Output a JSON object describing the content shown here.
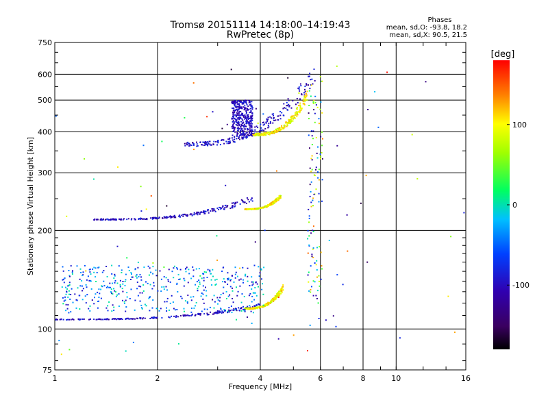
{
  "chart_data": {
    "type": "scatter",
    "title": "Tromsø 20151114 14:18:00–14:19:43",
    "subtitle": "RwPretec (8p)",
    "xlabel": "Frequency [MHz]",
    "ylabel": "Stationary phase Virtual Height [km]",
    "x_scale": "log",
    "y_scale": "log",
    "xlim": [
      1,
      16
    ],
    "ylim": [
      75,
      750
    ],
    "x_ticks": [
      1,
      2,
      4,
      6,
      8,
      10,
      16
    ],
    "y_ticks": [
      75,
      100,
      200,
      300,
      400,
      500,
      600,
      750
    ],
    "grid": true,
    "phases_box": {
      "title": "Phases",
      "line1": "mean, sd,O: -93.8, 18.2",
      "line2": "mean, sd,X:  90.5, 21.5"
    },
    "colorbar": {
      "label": "[deg]",
      "min": -180,
      "max": 180,
      "ticks": [
        100,
        0,
        -100
      ],
      "colormap": "rainbow: black-purple-blue-cyan-green-yellow-red"
    },
    "traces": [
      {
        "description": "E-region echo",
        "x_range": [
          1.0,
          4.0
        ],
        "y_range": [
          105,
          118
        ],
        "phase_deg": -100
      },
      {
        "description": "E-region echo (X)",
        "x_range": [
          3.6,
          4.7
        ],
        "y_range": [
          112,
          135
        ],
        "phase_deg": 100
      },
      {
        "description": "F1 echo",
        "x_range": [
          1.3,
          3.8
        ],
        "y_range": [
          210,
          250
        ],
        "phase_deg": -100
      },
      {
        "description": "F1 echo (X)",
        "x_range": [
          3.6,
          4.6
        ],
        "y_range": [
          228,
          255
        ],
        "phase_deg": 100
      },
      {
        "description": "F2 echo",
        "x_range": [
          2.4,
          5.8
        ],
        "y_range": [
          325,
          600
        ],
        "phase_deg": -100
      },
      {
        "description": "F2 echo (X)",
        "x_range": [
          3.8,
          5.5
        ],
        "y_range": [
          370,
          520
        ],
        "phase_deg": 100
      }
    ]
  }
}
